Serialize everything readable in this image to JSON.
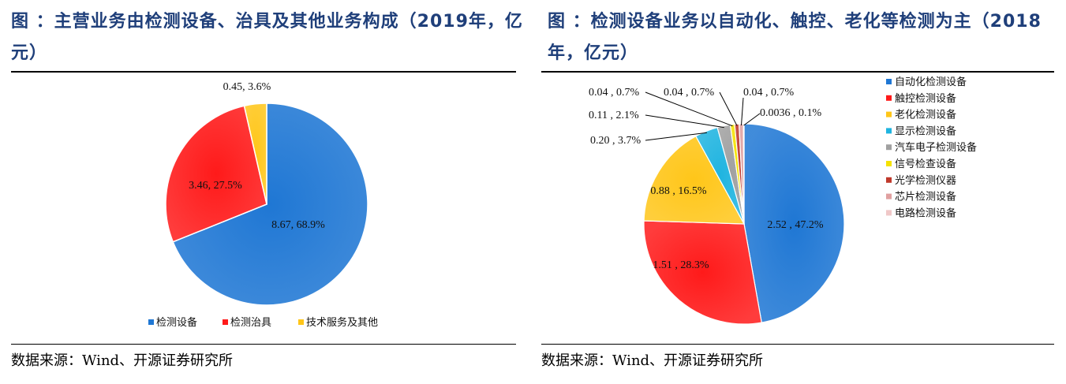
{
  "left": {
    "title": "图 ：主营业务由检测设备、治具及其他业务构成（2019年，亿元）",
    "source": "数据来源：Wind、开源证券研究所",
    "chart_data": {
      "type": "pie",
      "slices": [
        {
          "name": "检测设备",
          "value": 8.67,
          "percent": 68.9,
          "label": "8.67, 68.9%",
          "color": "#1F77D4"
        },
        {
          "name": "检测治具",
          "value": 3.46,
          "percent": 27.5,
          "label": "3.46, 27.5%",
          "color": "#FF1A1A"
        },
        {
          "name": "技术服务及其他",
          "value": 0.45,
          "percent": 3.6,
          "label": "0.45, 3.6%",
          "color": "#FFC619"
        }
      ],
      "legend_position": "bottom"
    }
  },
  "right": {
    "title": "图 ：检测设备业务以自动化、触控、老化等检测为主（2018年，亿元）",
    "source": "数据来源：Wind、开源证券研究所",
    "chart_data": {
      "type": "pie",
      "slices": [
        {
          "name": "自动化检测设备",
          "value": 2.52,
          "percent": 47.2,
          "label": "2.52 , 47.2%",
          "color": "#1F77D4"
        },
        {
          "name": "触控检测设备",
          "value": 1.51,
          "percent": 28.3,
          "label": "1.51 , 28.3%",
          "color": "#FF1A1A"
        },
        {
          "name": "老化检测设备",
          "value": 0.88,
          "percent": 16.5,
          "label": "0.88 , 16.5%",
          "color": "#FFC619"
        },
        {
          "name": "显示检测设备",
          "value": 0.2,
          "percent": 3.7,
          "label": "0.20 , 3.7%",
          "color": "#1FB4E0"
        },
        {
          "name": "汽车电子检测设备",
          "value": 0.11,
          "percent": 2.1,
          "label": "0.11 , 2.1%",
          "color": "#A0A0A0"
        },
        {
          "name": "信号检查设备",
          "value": 0.04,
          "percent": 0.7,
          "label": "0.04 , 0.7%",
          "color": "#F5E200"
        },
        {
          "name": "光学检测仪器",
          "value": 0.04,
          "percent": 0.7,
          "label": "0.04 , 0.7%",
          "color": "#C0392B"
        },
        {
          "name": "芯片检测设备",
          "value": 0.04,
          "percent": 0.7,
          "label": "0.04 , 0.7%",
          "color": "#E0A0A0"
        },
        {
          "name": "电路检测设备",
          "value": 0.0036,
          "percent": 0.1,
          "label": "0.0036 , 0.1%",
          "color": "#F0C8C8"
        }
      ],
      "legend_position": "right"
    }
  }
}
